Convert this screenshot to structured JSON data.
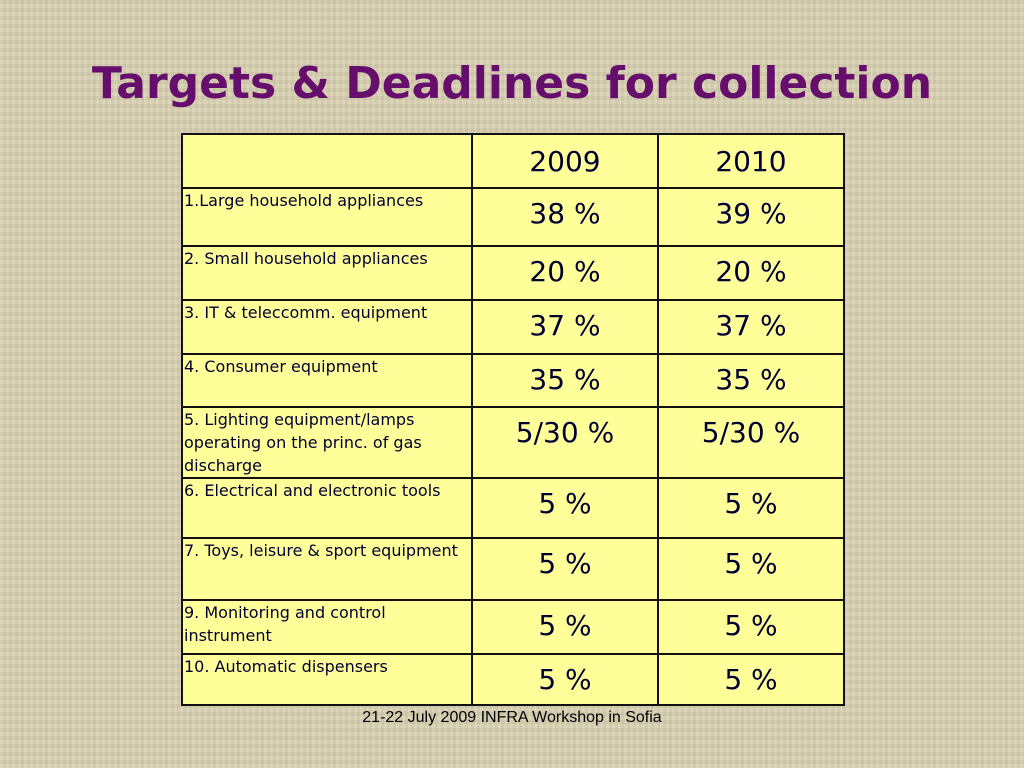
{
  "header": {
    "title": "Targets & Deadlines for collection"
  },
  "table": {
    "columns": [
      "2009",
      "2010"
    ],
    "rows": [
      [
        "1.Large household appliances",
        "38 %",
        "39 %"
      ],
      [
        "2. Small household appliances",
        "20 %",
        "20 %"
      ],
      [
        "3. IT &  teleccomm. equipment",
        "37 %",
        "37 %"
      ],
      [
        "4. Consumer equipment",
        "35 %",
        "35 %"
      ],
      [
        "5. Lighting equipment/lamps operating on the princ. of gas discharge",
        "5/30 %",
        "5/30 %"
      ],
      [
        "6. Electrical and electronic tools",
        "5 %",
        "5 %"
      ],
      [
        "7. Toys, leisure & sport equipment",
        "5 %",
        "5 %"
      ],
      [
        "9. Monitoring and control instrument",
        "5 %",
        "5 %"
      ],
      [
        "10. Automatic dispensers",
        "5 %",
        "5 %"
      ]
    ]
  },
  "footer": {
    "text": "21-22 July 2009 INFRA Workshop in Sofia"
  }
}
